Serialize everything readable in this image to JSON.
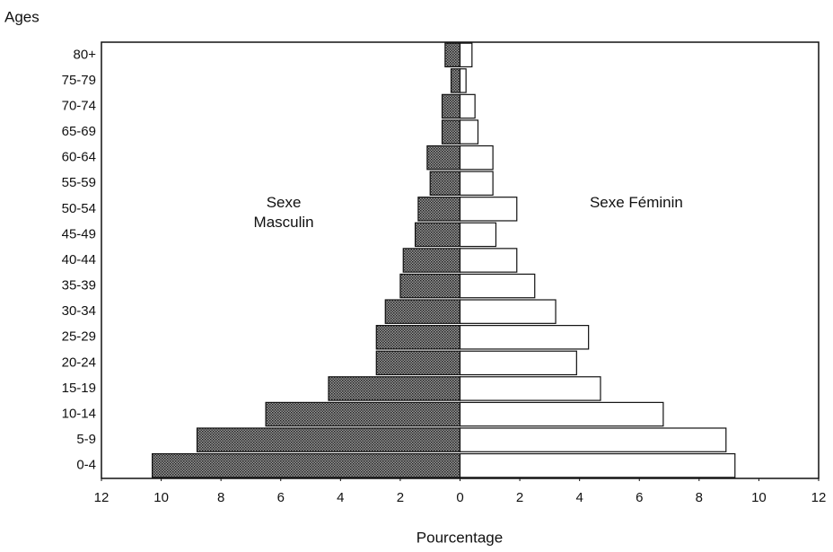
{
  "chart_data": {
    "type": "pyramid",
    "y_label": "Ages",
    "x_label": "Pourcentage",
    "categories": [
      "0-4",
      "5-9",
      "10-14",
      "15-19",
      "20-24",
      "25-29",
      "30-34",
      "35-39",
      "40-44",
      "45-49",
      "50-54",
      "55-59",
      "60-64",
      "65-69",
      "70-74",
      "75-79",
      "80+"
    ],
    "series": [
      {
        "name": "Sexe Masculin",
        "side": "left",
        "color": "#4d4d4d",
        "values": [
          10.3,
          8.8,
          6.5,
          4.4,
          2.8,
          2.8,
          2.5,
          2.0,
          1.9,
          1.5,
          1.4,
          1.0,
          1.1,
          0.6,
          0.6,
          0.3,
          0.5
        ]
      },
      {
        "name": "Sexe Féminin",
        "side": "right",
        "color": "#ffffff",
        "values": [
          9.2,
          8.9,
          6.8,
          4.7,
          3.9,
          4.3,
          3.2,
          2.5,
          1.9,
          1.2,
          1.9,
          1.1,
          1.1,
          0.6,
          0.5,
          0.2,
          0.4
        ]
      }
    ],
    "xlim": [
      -12,
      12
    ],
    "xticks": [
      {
        "value": -12,
        "label": "12"
      },
      {
        "value": -10,
        "label": "10"
      },
      {
        "value": -8,
        "label": "8"
      },
      {
        "value": -6,
        "label": "6"
      },
      {
        "value": -4,
        "label": "4"
      },
      {
        "value": -2,
        "label": "2"
      },
      0,
      2,
      4,
      6,
      8,
      10,
      12
    ]
  }
}
